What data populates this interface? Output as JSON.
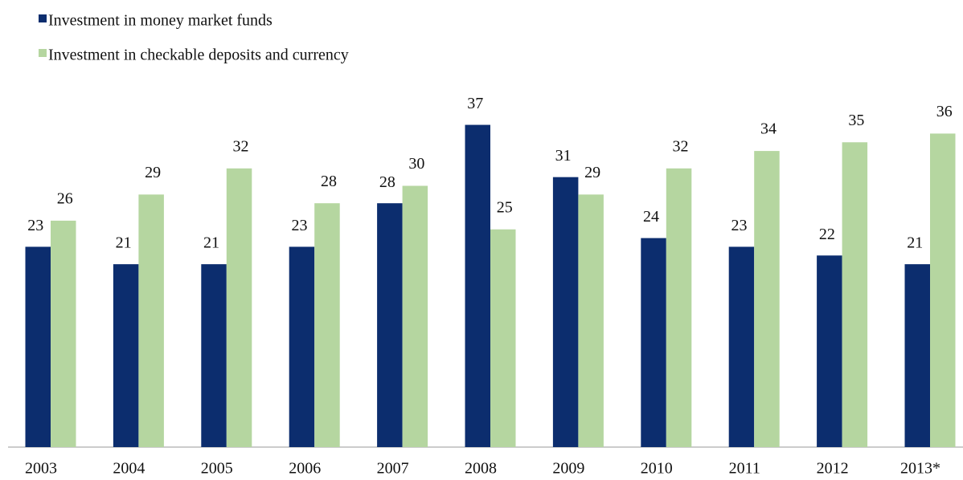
{
  "chart_data": {
    "type": "bar",
    "categories": [
      "2003",
      "2004",
      "2005",
      "2006",
      "2007",
      "2008",
      "2009",
      "2010",
      "2011",
      "2012",
      "2013*"
    ],
    "series": [
      {
        "name": "Investment in money market funds",
        "color": "#0c2d6e",
        "values": [
          23,
          21,
          21,
          23,
          28,
          37,
          31,
          24,
          23,
          22,
          21
        ]
      },
      {
        "name": "Investment in checkable deposits and currency",
        "color": "#b5d6a0",
        "values": [
          26,
          29,
          32,
          28,
          30,
          25,
          29,
          32,
          34,
          35,
          36
        ]
      }
    ]
  }
}
